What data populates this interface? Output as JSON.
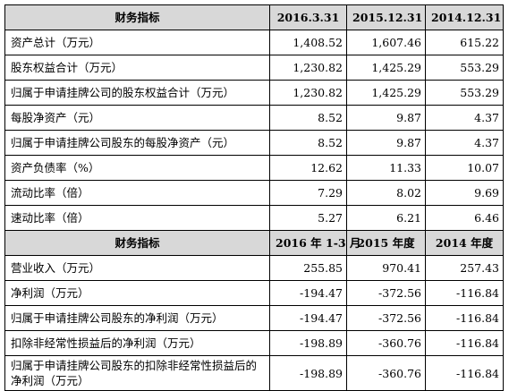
{
  "section1": {
    "headers": [
      "财务指标",
      "2016.3.31",
      "2015.12.31",
      "2014.12.31"
    ],
    "rows": [
      {
        "label": "资产总计（万元）",
        "values": [
          "1,408.52",
          "1,607.46",
          "615.22"
        ]
      },
      {
        "label": "股东权益合计（万元）",
        "values": [
          "1,230.82",
          "1,425.29",
          "553.29"
        ]
      },
      {
        "label": "归属于申请挂牌公司的股东权益合计（万元）",
        "values": [
          "1,230.82",
          "1,425.29",
          "553.29"
        ]
      },
      {
        "label": "每股净资产（元）",
        "values": [
          "8.52",
          "9.87",
          "4.37"
        ]
      },
      {
        "label": "归属于申请挂牌公司股东的每股净资产（元）",
        "values": [
          "8.52",
          "9.87",
          "4.37"
        ]
      },
      {
        "label": "资产负债率（%）",
        "values": [
          "12.62",
          "11.33",
          "10.07"
        ]
      },
      {
        "label": "流动比率（倍）",
        "values": [
          "7.29",
          "8.02",
          "9.69"
        ]
      },
      {
        "label": "速动比率（倍）",
        "values": [
          "5.27",
          "6.21",
          "6.46"
        ]
      }
    ]
  },
  "section2": {
    "headers": [
      "财务指标",
      "2016 年 1-3 月",
      "2015 年度",
      "2014 年度"
    ],
    "rows": [
      {
        "label": "营业收入（万元）",
        "values": [
          "255.85",
          "970.41",
          "257.43"
        ]
      },
      {
        "label": "净利润（万元）",
        "values": [
          "-194.47",
          "-372.56",
          "-116.84"
        ]
      },
      {
        "label": "归属于申请挂牌公司股东的净利润（万元）",
        "values": [
          "-194.47",
          "-372.56",
          "-116.84"
        ]
      },
      {
        "label": "扣除非经常性损益后的净利润（万元）",
        "values": [
          "-198.89",
          "-360.76",
          "-116.84"
        ]
      },
      {
        "label": "归属于申请挂牌公司股东的扣除非经常性损益后的净利润（万元）",
        "values": [
          "-198.89",
          "-360.76",
          "-116.84"
        ]
      }
    ]
  }
}
